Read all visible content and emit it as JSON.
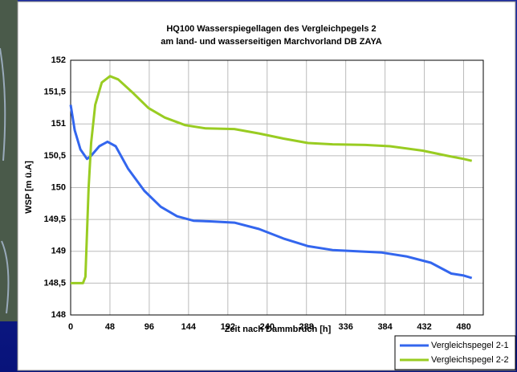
{
  "chart_data": {
    "type": "line",
    "title": "HQ100 Wasserspiegellagen des Vergleichpegels 2",
    "subtitle": "am land- und wasserseitigen Marchvorland DB ZAYA",
    "xlabel": "Zeit nach Dammbruch [h]",
    "ylabel": "WSP [m ü.A]",
    "xlim": [
      0,
      504
    ],
    "xticks": [
      0,
      48,
      96,
      144,
      192,
      240,
      288,
      336,
      384,
      432,
      480
    ],
    "ylim": [
      148,
      152
    ],
    "yticks": [
      148,
      {
        "value": 148.5,
        "label": "148,5"
      },
      149,
      {
        "value": 149.5,
        "label": "149,5"
      },
      150,
      {
        "value": 150.5,
        "label": "150,5"
      },
      151,
      {
        "value": 151.5,
        "label": "151,5"
      },
      152
    ],
    "grid": true,
    "legend": "bottom-right",
    "series": [
      {
        "name": "Vergleichspegel 2-1",
        "color": "#3366ee",
        "x": [
          0,
          5,
          12,
          20,
          25,
          35,
          45,
          55,
          70,
          90,
          110,
          130,
          150,
          170,
          200,
          230,
          260,
          290,
          320,
          350,
          380,
          410,
          440,
          465,
          480,
          490
        ],
        "values": [
          151.3,
          150.9,
          150.6,
          150.45,
          150.5,
          150.65,
          150.72,
          150.65,
          150.3,
          149.95,
          149.7,
          149.55,
          149.48,
          149.47,
          149.45,
          149.35,
          149.2,
          149.08,
          149.02,
          149.0,
          148.98,
          148.92,
          148.82,
          148.65,
          148.62,
          148.58
        ]
      },
      {
        "name": "Vergleichspegel 2-2",
        "color": "#99cc22",
        "x": [
          0,
          15,
          18,
          22,
          25,
          30,
          38,
          48,
          58,
          75,
          95,
          115,
          140,
          165,
          200,
          230,
          260,
          290,
          320,
          360,
          390,
          430,
          460,
          480,
          490
        ],
        "values": [
          148.5,
          148.5,
          148.6,
          150.0,
          150.7,
          151.3,
          151.65,
          151.75,
          151.7,
          151.5,
          151.25,
          151.1,
          150.98,
          150.93,
          150.92,
          150.85,
          150.77,
          150.7,
          150.68,
          150.67,
          150.65,
          150.58,
          150.5,
          150.45,
          150.42
        ]
      }
    ]
  }
}
